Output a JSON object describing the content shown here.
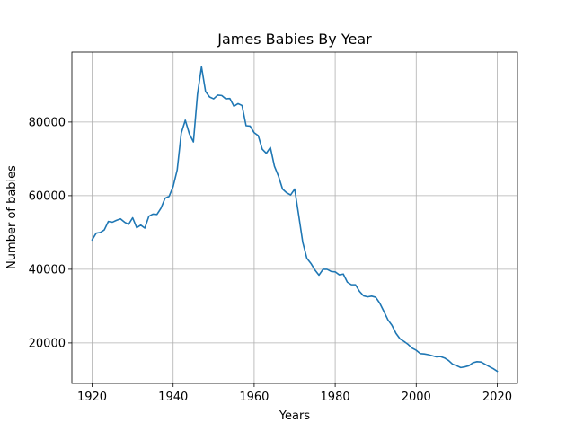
{
  "chart_data": {
    "type": "line",
    "title": "James Babies By Year",
    "xlabel": "Years",
    "ylabel": "Number of babies",
    "xlim": [
      1915,
      2025
    ],
    "ylim": [
      9000,
      99000
    ],
    "xticks": [
      1920,
      1940,
      1960,
      1980,
      2000,
      2020
    ],
    "yticks": [
      20000,
      40000,
      60000,
      80000
    ],
    "grid": true,
    "legend": "none",
    "series": [
      {
        "name": "James",
        "color": "#1f77b4",
        "x": [
          1920,
          1921,
          1922,
          1923,
          1924,
          1925,
          1926,
          1927,
          1928,
          1929,
          1930,
          1931,
          1932,
          1933,
          1934,
          1935,
          1936,
          1937,
          1938,
          1939,
          1940,
          1941,
          1942,
          1943,
          1944,
          1945,
          1946,
          1947,
          1948,
          1949,
          1950,
          1951,
          1952,
          1953,
          1954,
          1955,
          1956,
          1957,
          1958,
          1959,
          1960,
          1961,
          1962,
          1963,
          1964,
          1965,
          1966,
          1967,
          1968,
          1969,
          1970,
          1971,
          1972,
          1973,
          1974,
          1975,
          1976,
          1977,
          1978,
          1979,
          1980,
          1981,
          1982,
          1983,
          1984,
          1985,
          1986,
          1987,
          1988,
          1989,
          1990,
          1991,
          1992,
          1993,
          1994,
          1995,
          1996,
          1997,
          1998,
          1999,
          2000,
          2001,
          2002,
          2003,
          2004,
          2005,
          2006,
          2007,
          2008,
          2009,
          2010,
          2011,
          2012,
          2013,
          2014,
          2015,
          2016,
          2017,
          2018,
          2019,
          2020
        ],
        "values": [
          48000,
          49800,
          50000,
          50700,
          53000,
          52800,
          53300,
          53700,
          52800,
          52200,
          54000,
          51300,
          52000,
          51200,
          54400,
          55000,
          54900,
          56600,
          59300,
          59800,
          62500,
          67000,
          77000,
          80500,
          76800,
          74600,
          87500,
          95000,
          88300,
          86800,
          86300,
          87300,
          87200,
          86300,
          86400,
          84300,
          85000,
          84500,
          79000,
          78900,
          77100,
          76300,
          72600,
          71500,
          73100,
          68000,
          65300,
          61800,
          60800,
          60200,
          61800,
          54600,
          47300,
          43000,
          41600,
          39800,
          38400,
          40000,
          40000,
          39400,
          39300,
          38500,
          38700,
          36500,
          35800,
          35800,
          34000,
          32800,
          32500,
          32700,
          32400,
          30800,
          28600,
          26300,
          24800,
          22600,
          21100,
          20400,
          19600,
          18600,
          18000,
          17100,
          17000,
          16800,
          16500,
          16200,
          16300,
          15900,
          15200,
          14200,
          13800,
          13300,
          13500,
          13800,
          14600,
          14900,
          14800,
          14200,
          13600,
          13000,
          12300
        ]
      }
    ]
  }
}
